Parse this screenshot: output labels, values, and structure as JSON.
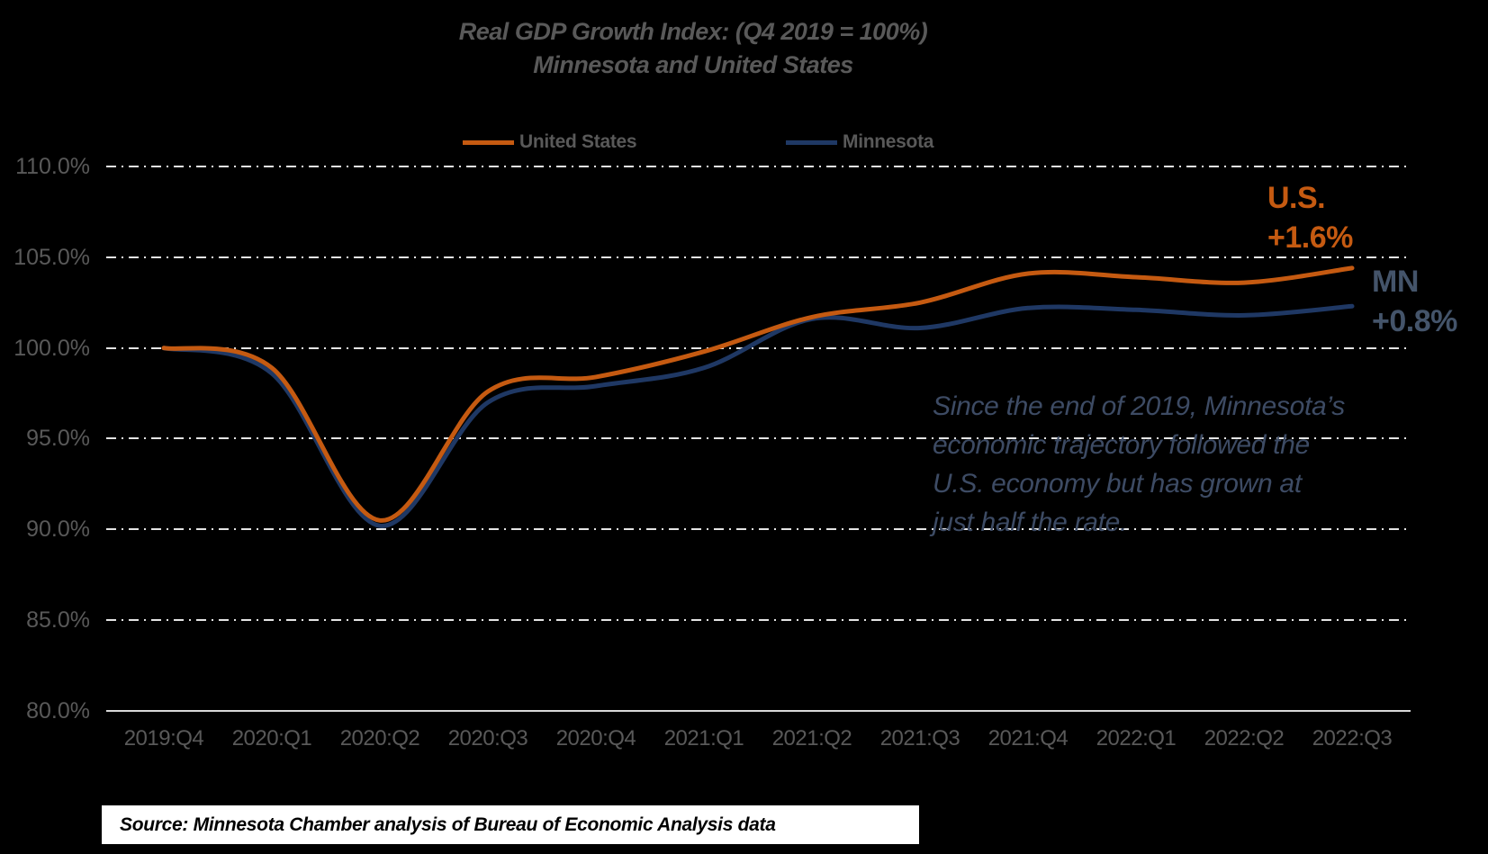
{
  "title": {
    "line1": "Real GDP Growth Index: (Q4 2019 = 100%)",
    "line2": "Minnesota and United States"
  },
  "legend": {
    "us_label": "United States",
    "mn_label": "Minnesota"
  },
  "y_axis": {
    "labels": [
      "110.0%",
      "105.0%",
      "100.0%",
      "95.0%",
      "90.0%",
      "85.0%",
      "80.0%"
    ]
  },
  "x_axis": {
    "labels": [
      "2019:Q4",
      "2020:Q1",
      "2020:Q2",
      "2020:Q3",
      "2020:Q4",
      "2021:Q1",
      "2021:Q2",
      "2021:Q3",
      "2021:Q4",
      "2022:Q1",
      "2022:Q2",
      "2022:Q3"
    ]
  },
  "chart_data": {
    "type": "line",
    "title": "Real GDP Growth Index: (Q4 2019 = 100%) — Minnesota and United States",
    "categories": [
      "2019:Q4",
      "2020:Q1",
      "2020:Q2",
      "2020:Q3",
      "2020:Q4",
      "2021:Q1",
      "2021:Q2",
      "2021:Q3",
      "2021:Q4",
      "2022:Q1",
      "2022:Q2",
      "2022:Q3"
    ],
    "series": [
      {
        "name": "Minnesota",
        "color": "#1F3864",
        "values": [
          100.0,
          98.6,
          90.2,
          97.0,
          97.9,
          98.9,
          101.6,
          101.1,
          102.2,
          102.1,
          101.8,
          102.3
        ]
      },
      {
        "name": "United States",
        "color": "#C55A11",
        "values": [
          100.0,
          98.9,
          90.5,
          97.6,
          98.4,
          99.8,
          101.7,
          102.5,
          104.1,
          103.9,
          103.6,
          104.4
        ]
      }
    ],
    "xlabel": "",
    "ylabel": "",
    "ylim": [
      80,
      110
    ],
    "ytick_step": 5,
    "grid": "horizontal dash-dot",
    "legend_position": "top",
    "annotations": [
      "U.S. +1.6%",
      "MN +0.8%",
      "Since the end of 2019, Minnesota’s economic trajectory followed the U.S. economy but has grown at just half the rate."
    ]
  },
  "callouts": {
    "us_name": "U.S.",
    "us_value": "+1.6%",
    "mn_name": "MN",
    "mn_value": "+0.8%"
  },
  "note": {
    "line1": "Since the end of 2019, Minnesota’s",
    "line2": "economic trajectory followed the",
    "line3": "U.S. economy but has grown at",
    "line4": "just half the rate."
  },
  "source": {
    "text": "Source: Minnesota Chamber analysis of Bureau of Economic Analysis data"
  },
  "colors": {
    "background": "#000000",
    "title_text": "#595959",
    "axis_text": "#595959",
    "gridline": "#E4E4E4",
    "axis_line": "#D9D9D9",
    "us_series": "#C55A11",
    "mn_series": "#1F3864",
    "mn_callout_text": "#44546A",
    "note_text": "#3D4B64",
    "source_background": "#FFFFFF",
    "source_text": "#000000"
  }
}
